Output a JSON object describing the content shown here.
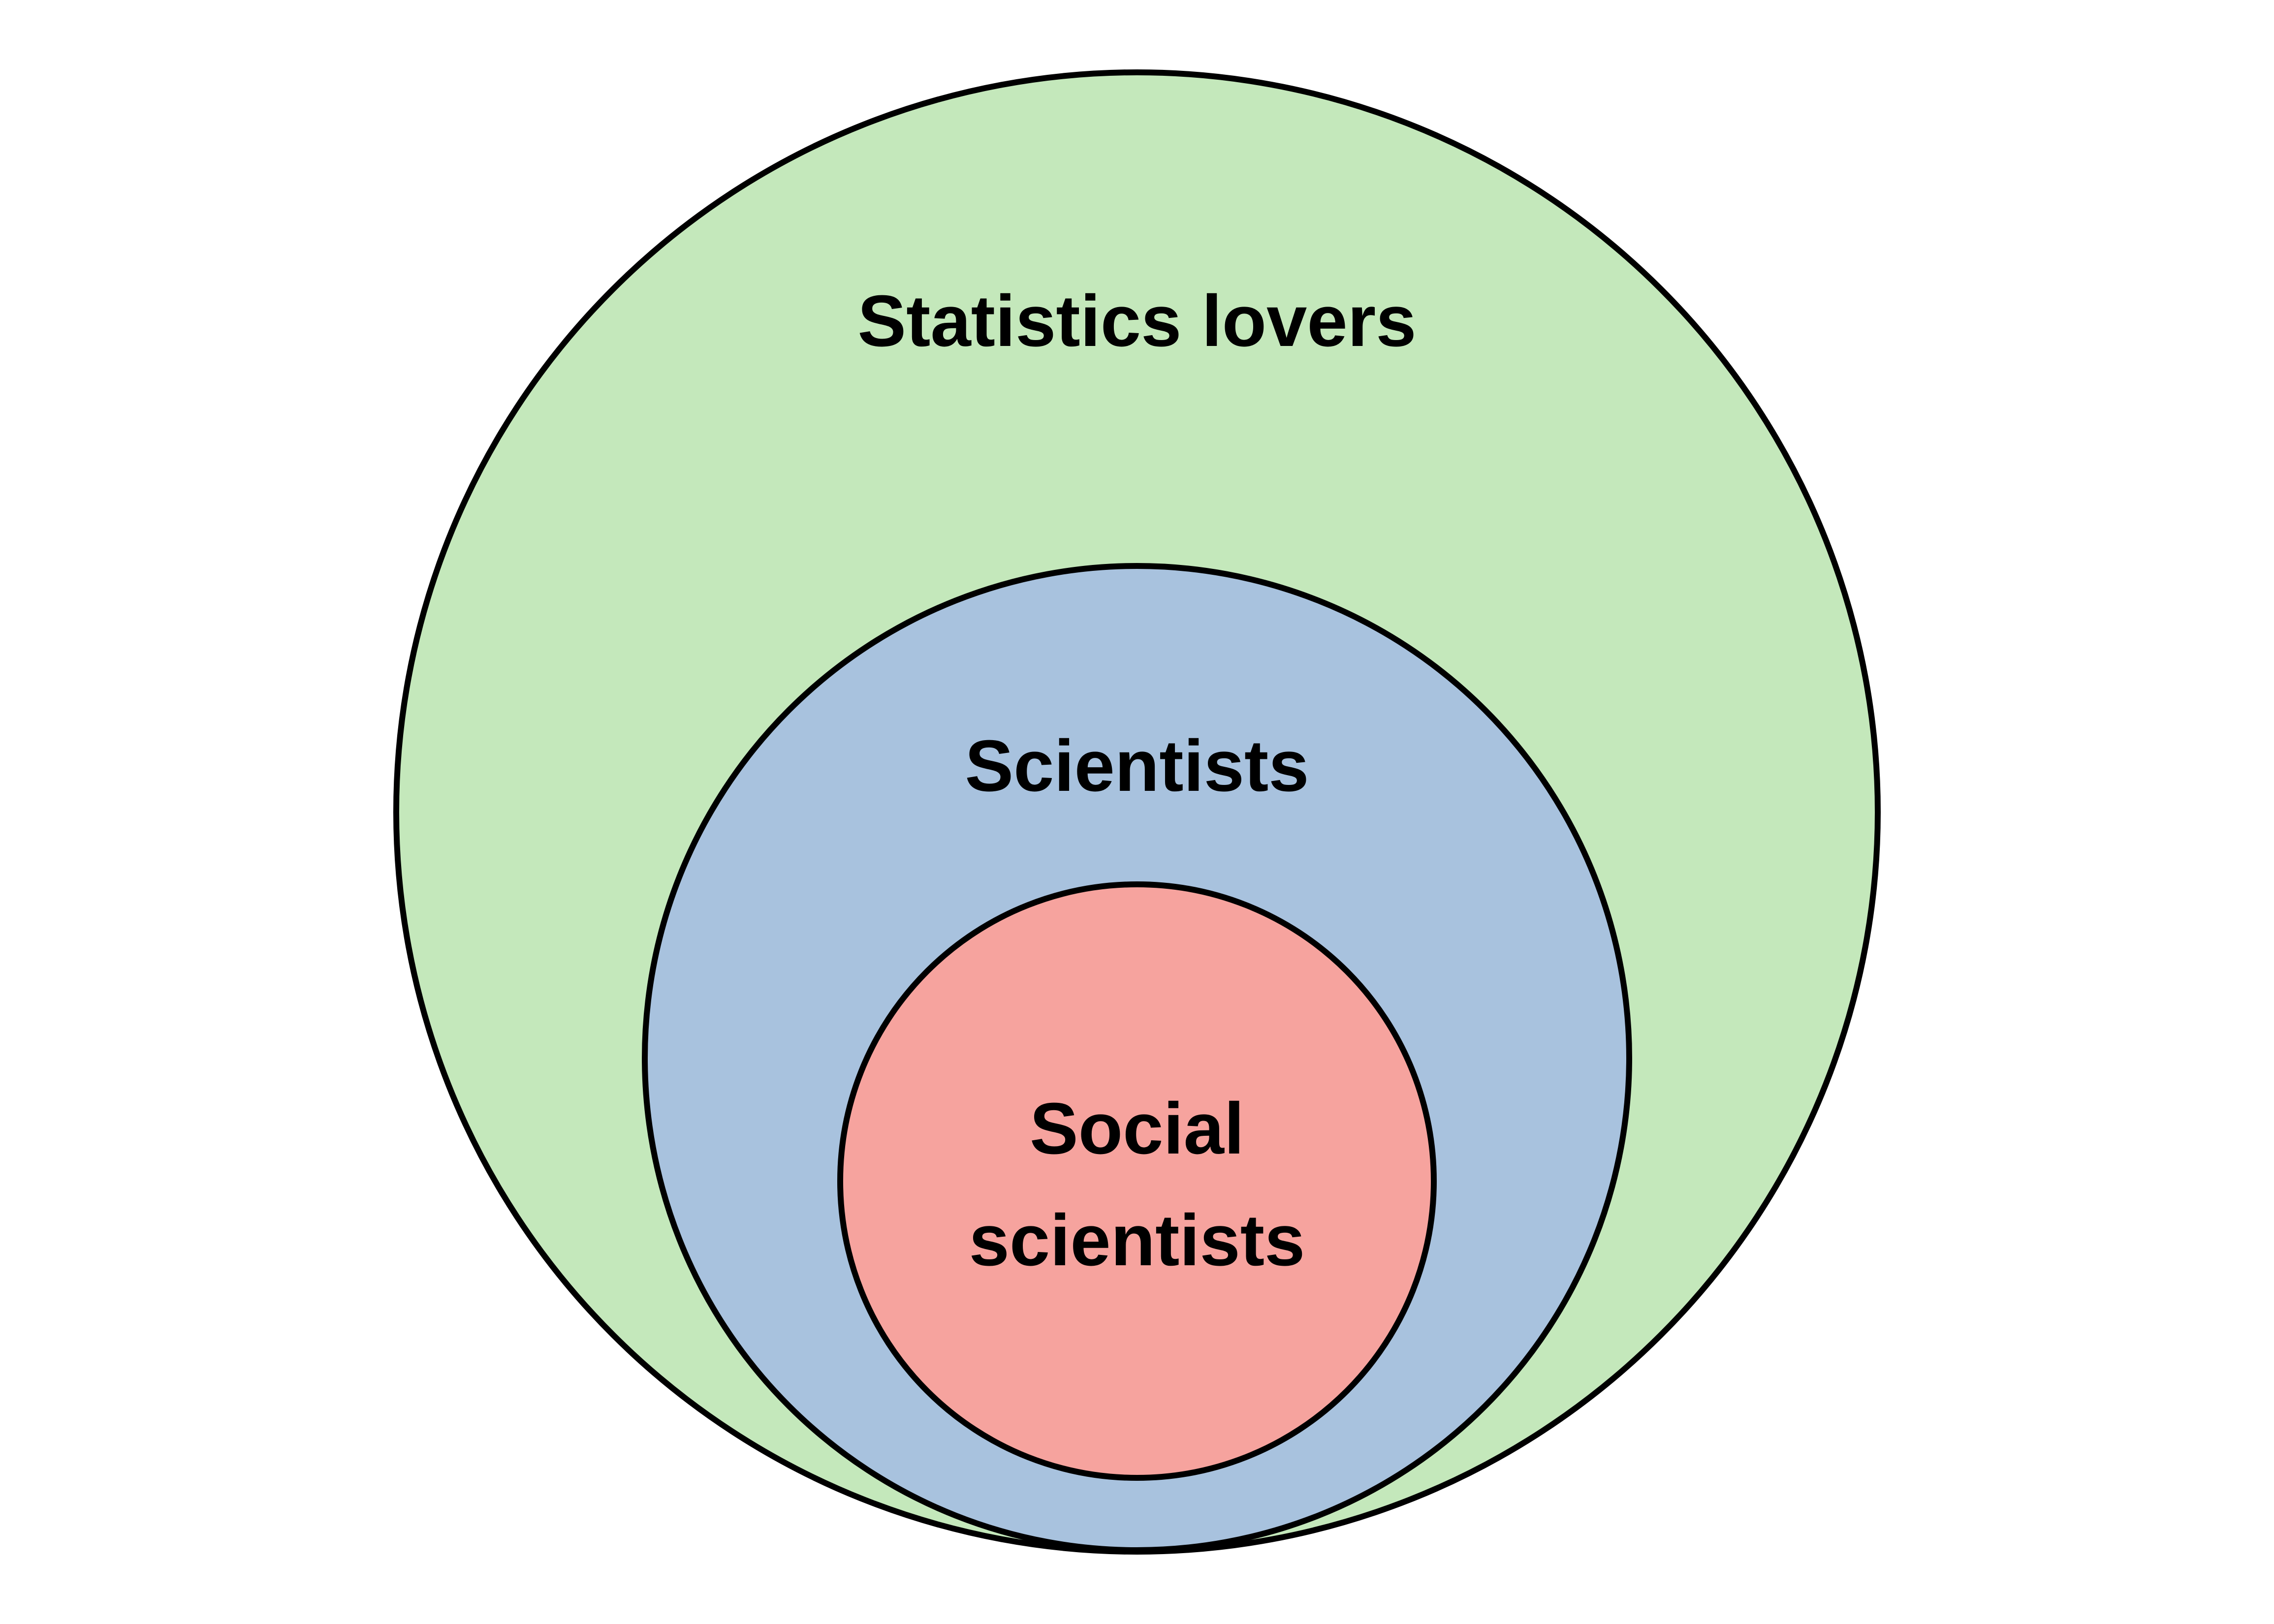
{
  "diagram": {
    "type": "nested-set (Euler) diagram",
    "sets": [
      {
        "id": "outer",
        "label": "Statistics lovers",
        "fill": "#c4e8bb"
      },
      {
        "id": "middle",
        "label": "Scientists",
        "fill": "#a8c2de"
      },
      {
        "id": "inner",
        "label_line1": "Social",
        "label_line2": "scientists",
        "fill": "#f6a39e"
      }
    ],
    "stroke_color": "#000000",
    "background": "#ffffff"
  }
}
